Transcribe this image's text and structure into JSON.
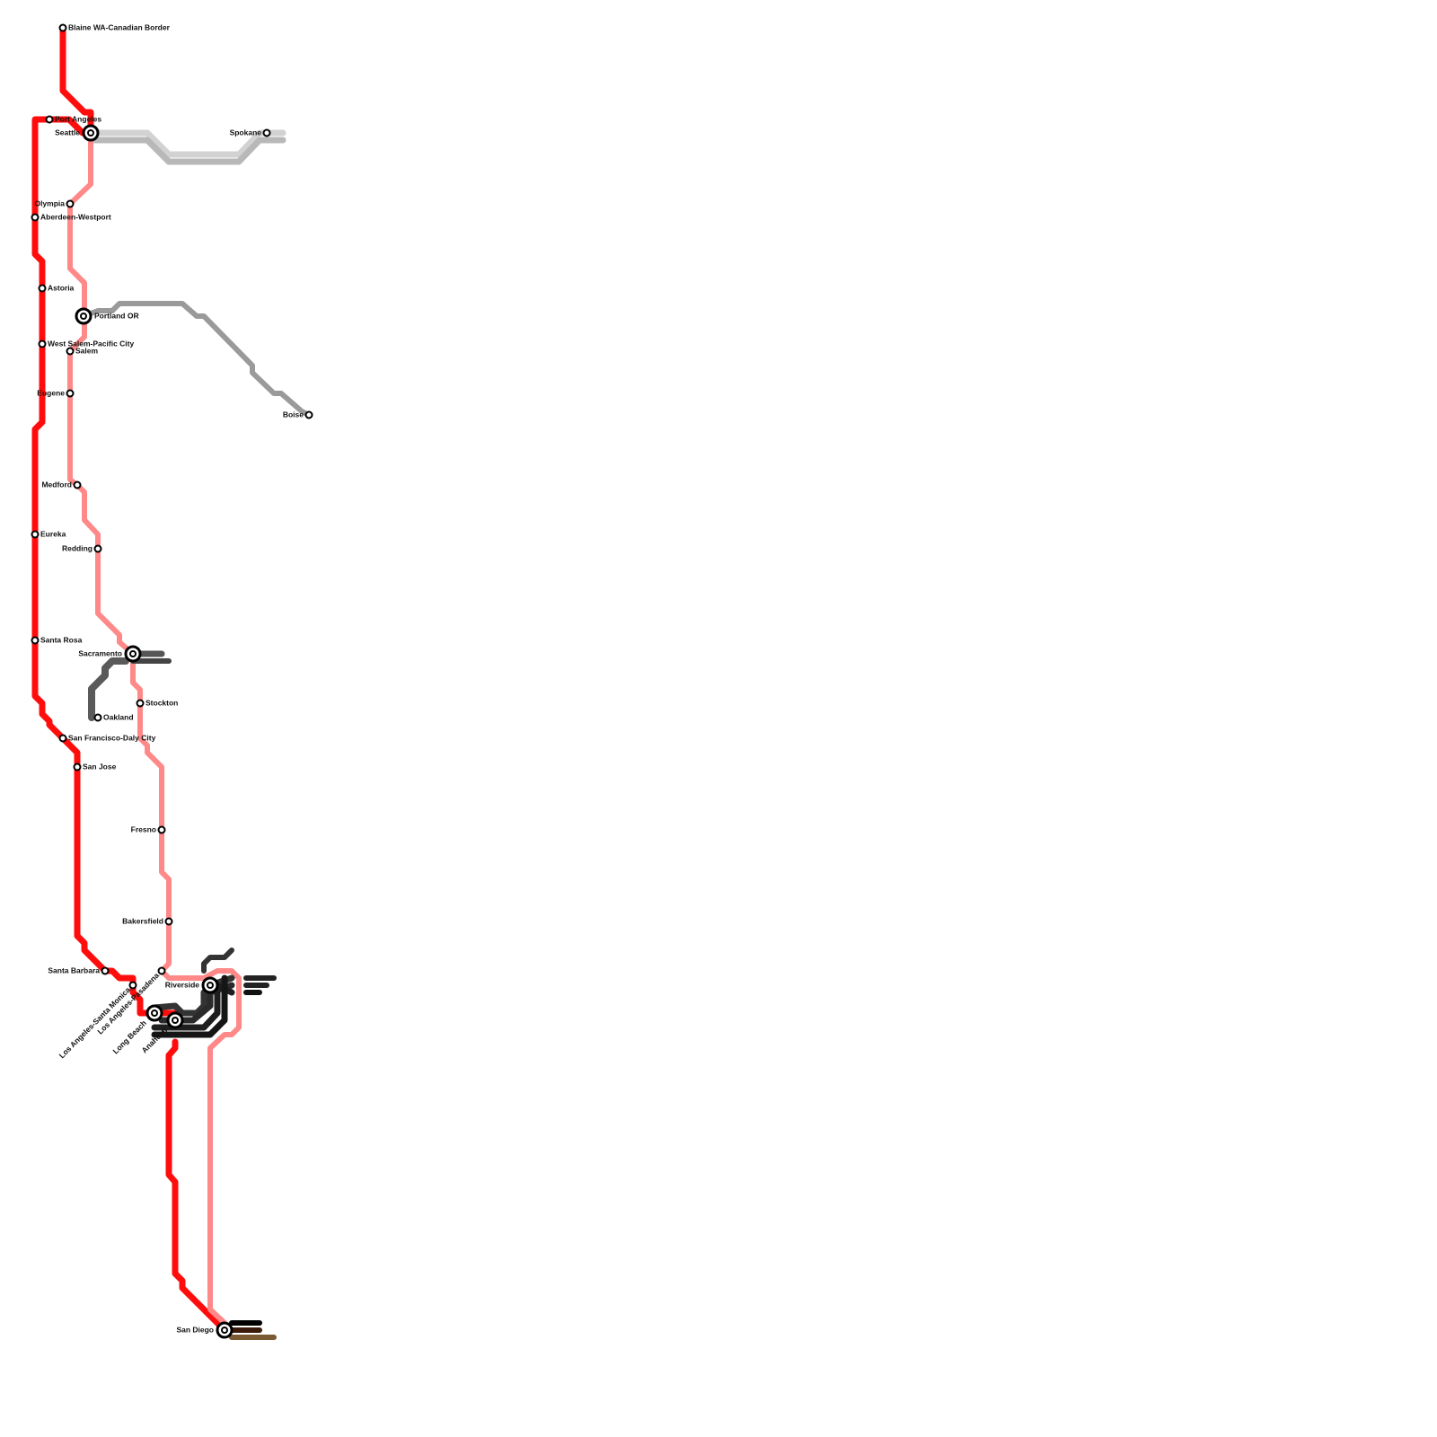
{
  "stations": [
    {
      "label": "Blaine WA-Canadian Border"
    },
    {
      "label": "Port Angeles"
    },
    {
      "label": "Seattle"
    },
    {
      "label": "Spokane"
    },
    {
      "label": "Olympia"
    },
    {
      "label": "Aberdeen-Westport"
    },
    {
      "label": "Astoria"
    },
    {
      "label": "Portland OR"
    },
    {
      "label": "West Salem-Pacific City"
    },
    {
      "label": "Salem"
    },
    {
      "label": "Eugene"
    },
    {
      "label": "Boise"
    },
    {
      "label": "Medford"
    },
    {
      "label": "Eureka"
    },
    {
      "label": "Redding"
    },
    {
      "label": "Santa Rosa"
    },
    {
      "label": "Sacramento"
    },
    {
      "label": "Stockton"
    },
    {
      "label": "Oakland"
    },
    {
      "label": "San Francisco-Daly City"
    },
    {
      "label": "San Jose"
    },
    {
      "label": "Fresno"
    },
    {
      "label": "Bakersfield"
    },
    {
      "label": "Santa Barbara"
    },
    {
      "label": "Los Angeles-Pasadena"
    },
    {
      "label": "Los Angeles-Santa Monica"
    },
    {
      "label": "Riverside"
    },
    {
      "label": "Long Beach"
    },
    {
      "label": "Anaheim"
    },
    {
      "label": "San Diego"
    }
  ]
}
